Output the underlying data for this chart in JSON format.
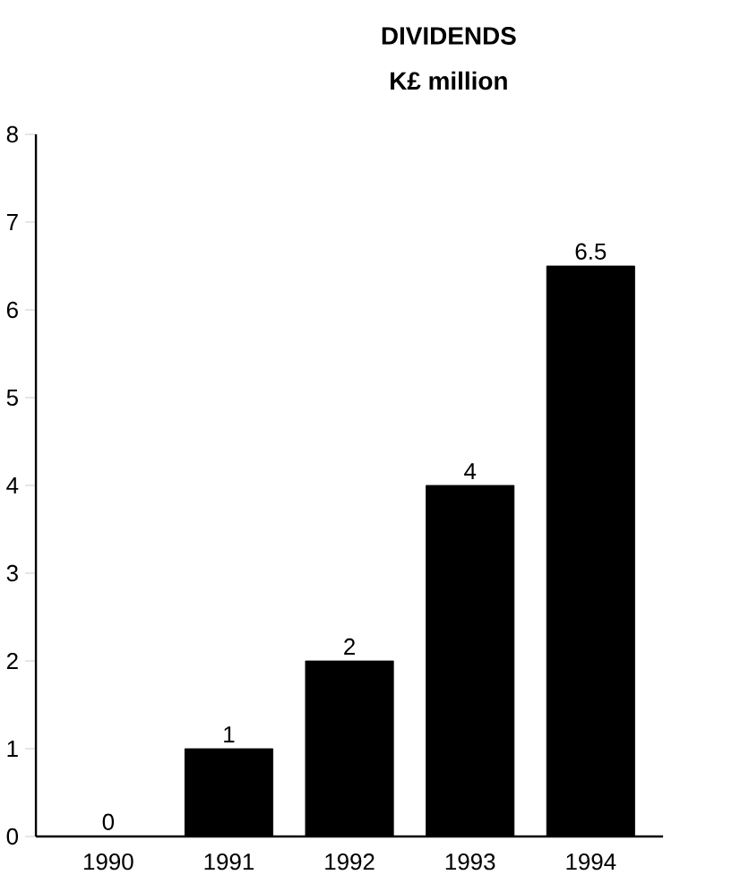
{
  "chart_data": {
    "type": "bar",
    "title": "DIVIDENDS",
    "subtitle": "K£ million",
    "categories": [
      "1990",
      "1991",
      "1992",
      "1993",
      "1994"
    ],
    "values": [
      0,
      1,
      2,
      4,
      6.5
    ],
    "color": "#000000",
    "ylim": [
      0,
      8
    ],
    "yticks": [
      0,
      1,
      2,
      3,
      4,
      5,
      6,
      7,
      8
    ],
    "data_labels": true
  }
}
